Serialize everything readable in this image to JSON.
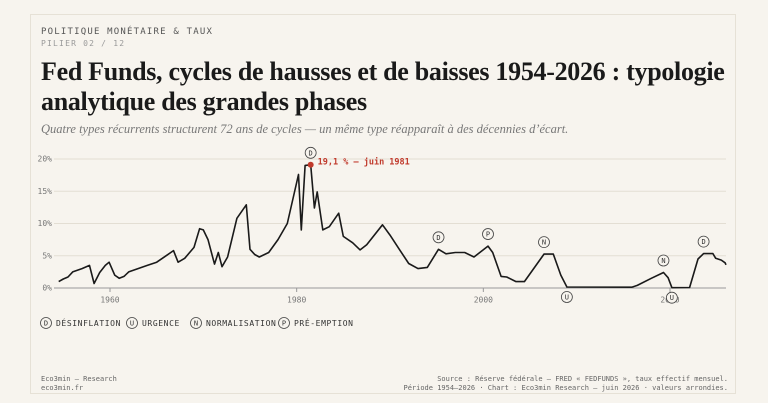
{
  "chart_data": {
    "type": "line",
    "kicker": "POLITIQUE MONÉTAIRE & TAUX",
    "pillar": "PILIER 02 / 12",
    "title": "Fed Funds, cycles de hausses et de baisses 1954-2026 : typologie analytique des grandes phases",
    "subtitle": "Quatre types récurrents structurent 72 ans de cycles — un même type réapparaît à des décennies d’écart.",
    "x": [
      1954.5,
      1955,
      1955.5,
      1956,
      1957,
      1957.8,
      1958.3,
      1958.9,
      1959.5,
      1959.9,
      1960.5,
      1961,
      1961.5,
      1962,
      1963,
      1964,
      1965,
      1966,
      1966.8,
      1967.3,
      1968,
      1969,
      1969.6,
      1970,
      1970.5,
      1971.2,
      1971.6,
      1972,
      1972.6,
      1973.6,
      1974.6,
      1975,
      1975.5,
      1976,
      1977,
      1978,
      1979,
      1980.2,
      1980.5,
      1980.9,
      1981.5,
      1981.9,
      1982.2,
      1982.8,
      1983.5,
      1984.5,
      1985,
      1986,
      1986.8,
      1987.5,
      1989.2,
      1990,
      1991,
      1992,
      1993,
      1994,
      1995.2,
      1996,
      1997,
      1998,
      1999,
      2000.5,
      2001,
      2001.9,
      2002.5,
      2003.5,
      2004.4,
      2006.5,
      2007.5,
      2008.3,
      2008.95,
      2015.9,
      2016.5,
      2018,
      2019.3,
      2019.8,
      2020.2,
      2022.1,
      2023,
      2023.6,
      2024.6,
      2024.9,
      2025.5,
      2025.9,
      2026
    ],
    "values": [
      1.0,
      1.4,
      1.7,
      2.5,
      3.0,
      3.5,
      0.7,
      2.4,
      3.5,
      4.0,
      2.0,
      1.5,
      1.8,
      2.5,
      3.0,
      3.5,
      4.0,
      5.0,
      5.8,
      4.0,
      4.6,
      6.3,
      9.2,
      9.0,
      7.5,
      3.7,
      5.5,
      3.3,
      4.8,
      10.8,
      12.9,
      6.0,
      5.2,
      4.8,
      5.5,
      7.5,
      10.0,
      17.6,
      9.0,
      19.0,
      19.1,
      12.4,
      14.9,
      9.0,
      9.5,
      11.6,
      8.0,
      7.0,
      5.9,
      6.7,
      9.8,
      8.2,
      6.0,
      3.8,
      3.0,
      3.2,
      6.0,
      5.3,
      5.5,
      5.5,
      4.8,
      6.5,
      5.5,
      1.8,
      1.7,
      1.0,
      1.0,
      5.25,
      5.25,
      2.0,
      0.15,
      0.12,
      0.4,
      1.5,
      2.4,
      1.6,
      0.05,
      0.08,
      4.5,
      5.33,
      5.33,
      4.6,
      4.33,
      3.9,
      3.6
    ],
    "color": "#1a1a1a",
    "xlim": [
      1954,
      2026
    ],
    "xticks": [
      1960,
      1980,
      2000,
      2020
    ],
    "ylim": [
      0,
      20
    ],
    "yticks": [
      {
        "value": 0,
        "label": "0%"
      },
      {
        "value": 5,
        "label": "5%"
      },
      {
        "value": 10,
        "label": "10%"
      },
      {
        "value": 15,
        "label": "15%"
      },
      {
        "value": 20,
        "label": "20%"
      }
    ],
    "grid": true,
    "annotation": {
      "text": "19,1 % — juin 1981",
      "x": 1981.5,
      "y": 19.1,
      "color": "#c0392b"
    },
    "phase_markers": [
      {
        "letter": "D",
        "x": 1981.5,
        "y": 19.1,
        "side": "above"
      },
      {
        "letter": "D",
        "x": 1995.2,
        "y": 6.0,
        "side": "above"
      },
      {
        "letter": "P",
        "x": 2000.5,
        "y": 6.5,
        "side": "above"
      },
      {
        "letter": "N",
        "x": 2006.5,
        "y": 5.25,
        "side": "above"
      },
      {
        "letter": "U",
        "x": 2008.95,
        "y": 0.15,
        "side": "below"
      },
      {
        "letter": "N",
        "x": 2019.3,
        "y": 2.4,
        "side": "above"
      },
      {
        "letter": "U",
        "x": 2020.2,
        "y": 0.05,
        "side": "below"
      },
      {
        "letter": "D",
        "x": 2023.6,
        "y": 5.33,
        "side": "above"
      }
    ],
    "legend": [
      {
        "letter": "D",
        "label": "DÉSINFLATION"
      },
      {
        "letter": "U",
        "label": "URGENCE"
      },
      {
        "letter": "N",
        "label": "NORMALISATION"
      },
      {
        "letter": "P",
        "label": "PRÉ-EMPTION"
      }
    ],
    "footer_left": [
      "Eco3min — Research",
      "eco3min.fr"
    ],
    "footer_right": [
      "Source : Réserve fédérale — FRED « FEDFUNDS », taux effectif mensuel.",
      "Période 1954–2026 · Chart : Eco3min Research — juin 2026 · valeurs arrondies."
    ]
  }
}
